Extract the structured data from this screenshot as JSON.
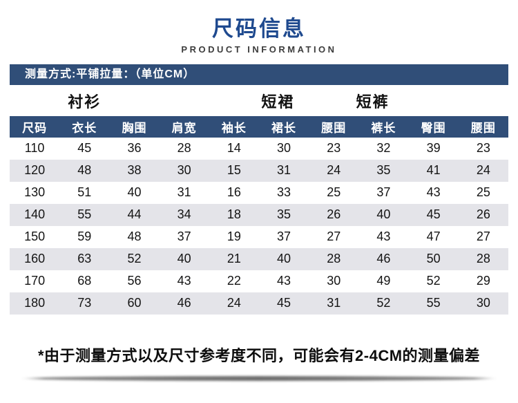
{
  "page": {
    "title": "尺码信息",
    "subtitle": "PRODUCT INFORMATION",
    "measure_note": "测量方式:平铺拉量：（单位CM）",
    "footnote": "*由于测量方式以及尺寸参考度不同，可能会有2-4CM的测量偏差"
  },
  "colors": {
    "title_blue": "#1f4a8f",
    "header_navy": "#304e78",
    "stripe_gray": "#e4e4e9"
  },
  "table": {
    "groups": [
      "衬衫",
      "短裙",
      "短裤"
    ],
    "columns": [
      "尺码",
      "衣长",
      "胸围",
      "肩宽",
      "袖长",
      "裙长",
      "腰围",
      "裤长",
      "臀围",
      "腰围"
    ],
    "rows": [
      [
        "110",
        "45",
        "36",
        "28",
        "14",
        "30",
        "23",
        "32",
        "39",
        "23"
      ],
      [
        "120",
        "48",
        "38",
        "30",
        "15",
        "31",
        "24",
        "35",
        "41",
        "24"
      ],
      [
        "130",
        "51",
        "40",
        "31",
        "16",
        "33",
        "25",
        "37",
        "43",
        "25"
      ],
      [
        "140",
        "55",
        "44",
        "34",
        "18",
        "35",
        "26",
        "40",
        "45",
        "26"
      ],
      [
        "150",
        "59",
        "48",
        "37",
        "19",
        "37",
        "27",
        "43",
        "47",
        "27"
      ],
      [
        "160",
        "63",
        "52",
        "40",
        "21",
        "40",
        "28",
        "46",
        "50",
        "28"
      ],
      [
        "170",
        "68",
        "56",
        "43",
        "22",
        "43",
        "30",
        "49",
        "52",
        "29"
      ],
      [
        "180",
        "73",
        "60",
        "46",
        "24",
        "45",
        "31",
        "52",
        "55",
        "30"
      ]
    ]
  }
}
